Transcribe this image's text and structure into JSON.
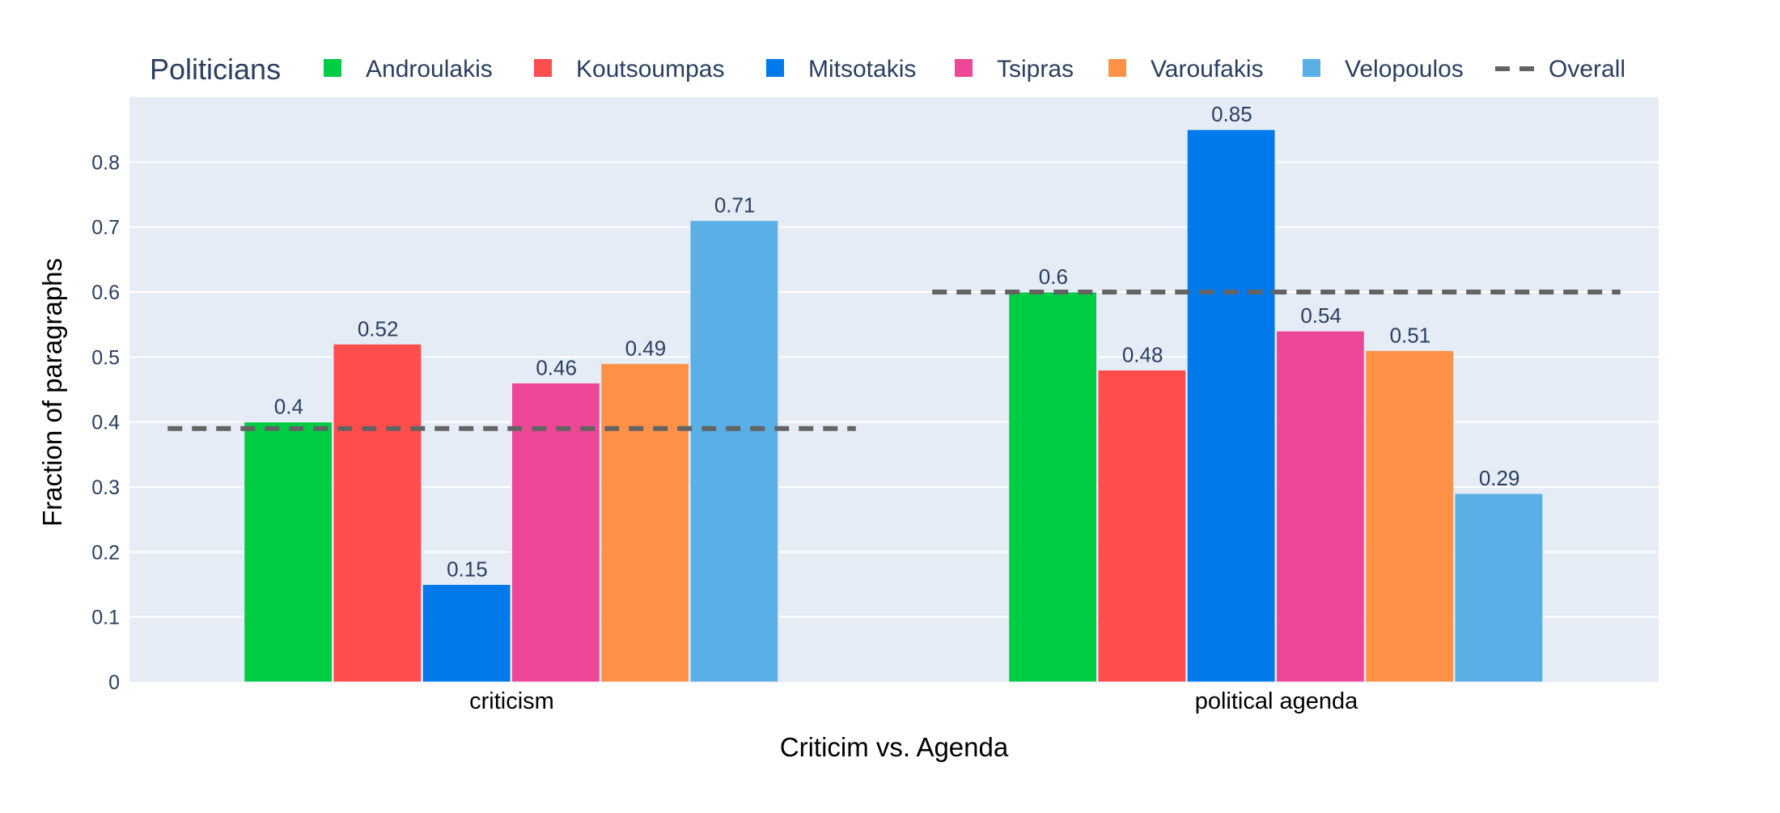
{
  "chart_data": {
    "type": "bar",
    "title": "",
    "legend_title": "Politicians",
    "xlabel": "Criticim vs. Agenda",
    "ylabel": "Fraction of paragraphs",
    "categories": [
      "criticism",
      "political agenda"
    ],
    "ylim": [
      0,
      0.9
    ],
    "y_ticks": [
      0,
      0.1,
      0.2,
      0.3,
      0.4,
      0.5,
      0.6,
      0.7,
      0.8
    ],
    "y_tick_labels": [
      "0",
      "0.1",
      "0.2",
      "0.3",
      "0.4",
      "0.5",
      "0.6",
      "0.7",
      "0.8"
    ],
    "grid": true,
    "legend_position": "top",
    "plot_background": "#e5ecf6",
    "series": [
      {
        "name": "Androulakis",
        "color": "#00cc44",
        "values": [
          0.4,
          0.6
        ],
        "labels": [
          "0.4",
          "0.6"
        ]
      },
      {
        "name": "Koutsoumpas",
        "color": "#ff4d4d",
        "values": [
          0.52,
          0.48
        ],
        "labels": [
          "0.52",
          "0.48"
        ]
      },
      {
        "name": "Mitsotakis",
        "color": "#007aeb",
        "values": [
          0.15,
          0.85
        ],
        "labels": [
          "0.15",
          "0.85"
        ]
      },
      {
        "name": "Tsipras",
        "color": "#ef4797",
        "values": [
          0.46,
          0.54
        ],
        "labels": [
          "0.46",
          "0.54"
        ]
      },
      {
        "name": "Varoufakis",
        "color": "#ff9248",
        "values": [
          0.49,
          0.51
        ],
        "labels": [
          "0.49",
          "0.51"
        ]
      },
      {
        "name": "Velopoulos",
        "color": "#5ab0e6",
        "values": [
          0.71,
          0.29
        ],
        "labels": [
          "0.71",
          "0.29"
        ]
      }
    ],
    "overall": {
      "name": "Overall",
      "color": "#636363",
      "style": "dashed",
      "values": [
        0.39,
        0.6
      ]
    }
  }
}
